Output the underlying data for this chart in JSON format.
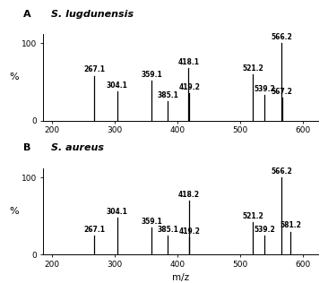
{
  "panel_A": {
    "panel_label": "A",
    "species": "S. lugdunensis",
    "peaks": [
      {
        "mz": 267.1,
        "intensity": 58,
        "label": "267.1"
      },
      {
        "mz": 304.1,
        "intensity": 38,
        "label": "304.1"
      },
      {
        "mz": 359.1,
        "intensity": 52,
        "label": "359.1"
      },
      {
        "mz": 385.1,
        "intensity": 25,
        "label": "385.1"
      },
      {
        "mz": 418.1,
        "intensity": 68,
        "label": "418.1"
      },
      {
        "mz": 419.2,
        "intensity": 35,
        "label": "419.2"
      },
      {
        "mz": 521.2,
        "intensity": 60,
        "label": "521.2"
      },
      {
        "mz": 539.2,
        "intensity": 33,
        "label": "539.2"
      },
      {
        "mz": 566.2,
        "intensity": 100,
        "label": "566.2"
      },
      {
        "mz": 567.2,
        "intensity": 30,
        "label": "567.2"
      }
    ]
  },
  "panel_B": {
    "panel_label": "B",
    "species": "S. aureus",
    "peaks": [
      {
        "mz": 267.1,
        "intensity": 25,
        "label": "267.1"
      },
      {
        "mz": 304.1,
        "intensity": 48,
        "label": "304.1"
      },
      {
        "mz": 359.1,
        "intensity": 35,
        "label": "359.1"
      },
      {
        "mz": 385.1,
        "intensity": 25,
        "label": "385.1"
      },
      {
        "mz": 418.2,
        "intensity": 70,
        "label": "418.2"
      },
      {
        "mz": 419.2,
        "intensity": 22,
        "label": "419.2"
      },
      {
        "mz": 521.2,
        "intensity": 42,
        "label": "521.2"
      },
      {
        "mz": 539.2,
        "intensity": 25,
        "label": "539.2"
      },
      {
        "mz": 566.2,
        "intensity": 100,
        "label": "566.2"
      },
      {
        "mz": 581.2,
        "intensity": 30,
        "label": "581.2"
      }
    ]
  },
  "xlim": [
    185,
    625
  ],
  "ylim": [
    0,
    112
  ],
  "xticks": [
    200,
    300,
    400,
    500,
    600
  ],
  "yticks": [
    0,
    100
  ],
  "xlabel": "m/z",
  "ylabel": "%",
  "line_color": "black",
  "bg_color": "white",
  "label_fontsize": 5.5,
  "title_fontsize": 8.0,
  "axis_fontsize": 6.5
}
